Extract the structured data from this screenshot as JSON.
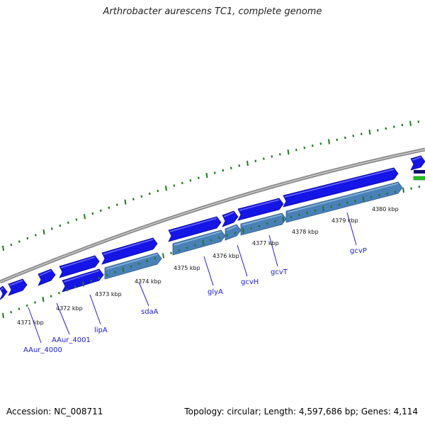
{
  "title": "Arthrobacter aurescens TC1, complete genome",
  "footer": {
    "accession": "Accession: NC_008711",
    "summary": "Topology: circular; Length: 4,597,686 bp; Genes: 4,114"
  },
  "colors": {
    "backbone": "#8a8a8a",
    "ticks": "#1e7a1e",
    "gene_forward": "#1515e6",
    "gene_lane2": "#4a80b8",
    "label_line": "#2020d0",
    "label_text": "#1a1ad0"
  },
  "kbp_labels": [
    "4371 kbp",
    "4372 kbp",
    "4373 kbp",
    "4374 kbp",
    "4375 kbp",
    "4376 kbp",
    "4377 kbp",
    "4378 kbp",
    "4379 kbp",
    "4380 kbp"
  ],
  "gene_labels": [
    "AAur_4000",
    "AAur_4001",
    "lipA",
    "sdaA",
    "glyA",
    "gcvH",
    "gcvT",
    "gcvP"
  ]
}
